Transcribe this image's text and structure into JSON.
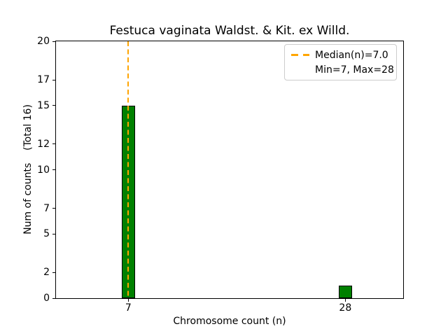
{
  "chart_data": {
    "type": "bar",
    "title": "Festuca vaginata Waldst. & Kit. ex Willd.",
    "xlabel": "Chromosome count (n)",
    "ylabel": "Num of counts    (Total 16)",
    "total_counts": 16,
    "x": [
      7,
      28
    ],
    "values": [
      15,
      1
    ],
    "bar_width_units": 1.3,
    "bar_color": "#008000",
    "bar_edge_color": "#000000",
    "median_line": {
      "x": 7.0,
      "color": "#FFA500",
      "style": "dashed"
    },
    "xlim": [
      0,
      33.6
    ],
    "ylim": [
      0,
      20
    ],
    "xticks": [
      7,
      28
    ],
    "yticks": [
      0,
      2,
      5,
      7,
      10,
      12,
      15,
      17,
      20
    ],
    "grid": false,
    "legend": {
      "position": "upper-right",
      "entries": [
        {
          "label": "Median(n)=7.0",
          "handle": "dashed-line",
          "color": "#FFA500"
        },
        {
          "label": "Min=7, Max=28",
          "handle": "none"
        }
      ]
    }
  }
}
